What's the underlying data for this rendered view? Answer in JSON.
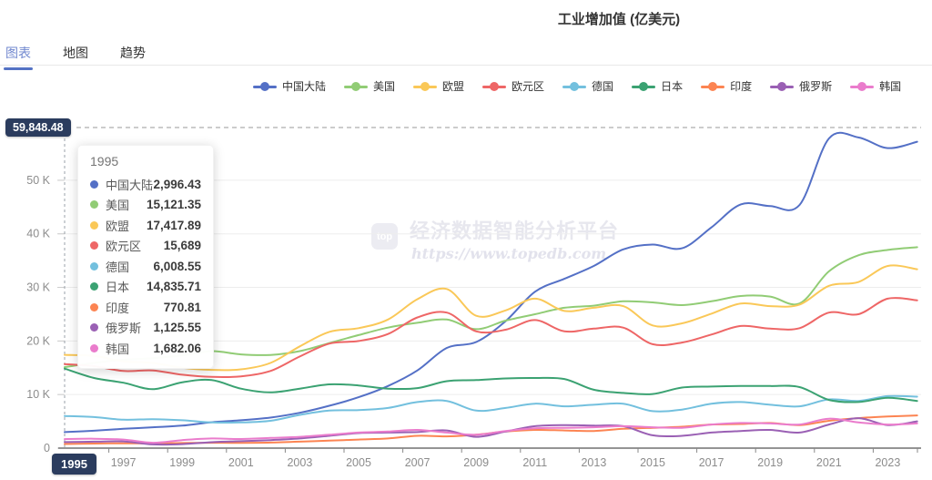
{
  "header": {
    "title": "工业增加值 (亿美元)"
  },
  "tabs": {
    "items": [
      {
        "label": "图表",
        "active": true
      },
      {
        "label": "地图",
        "active": false
      },
      {
        "label": "趋势",
        "active": false
      }
    ]
  },
  "axis": {
    "y_max_label": "59,848.48",
    "x_pointer_label": "1995",
    "y_ticks": [
      "0",
      "10 K",
      "20 K",
      "30 K",
      "40 K",
      "50 K"
    ],
    "x_labels": [
      "1995",
      "1997",
      "1999",
      "2001",
      "2003",
      "2005",
      "2007",
      "2009",
      "2011",
      "2013",
      "2015",
      "2017",
      "2019",
      "2021",
      "2023"
    ]
  },
  "tooltip": {
    "title": "1995",
    "rows": [
      {
        "label": "中国大陆",
        "value": "2,996.43"
      },
      {
        "label": "美国",
        "value": "15,121.35"
      },
      {
        "label": "欧盟",
        "value": "17,417.89"
      },
      {
        "label": "欧元区",
        "value": "15,689"
      },
      {
        "label": "德国",
        "value": "6,008.55"
      },
      {
        "label": "日本",
        "value": "14,835.71"
      },
      {
        "label": "印度",
        "value": "770.81"
      },
      {
        "label": "俄罗斯",
        "value": "1,125.55"
      },
      {
        "label": "韩国",
        "value": "1,682.06"
      }
    ]
  },
  "watermark": {
    "logo_text": "top",
    "text": "经济数据智能分析平台",
    "url": "https://www.topedb.com"
  },
  "colors": {
    "badge_navy": "#2b3c5e",
    "grid": "#ededed",
    "axis_line": "#555555",
    "axis_label": "#8c8c8c",
    "dashed_guides": "#999999"
  },
  "chart_data": {
    "type": "line",
    "title": "工业增加值 (亿美元)",
    "xlabel": "",
    "ylabel": "亿美元",
    "ylim": [
      0,
      59848.48
    ],
    "grid": true,
    "legend_position": "top",
    "smooth": true,
    "x": [
      1995,
      1996,
      1997,
      1998,
      1999,
      2000,
      2001,
      2002,
      2003,
      2004,
      2005,
      2006,
      2007,
      2008,
      2009,
      2010,
      2011,
      2012,
      2013,
      2014,
      2015,
      2016,
      2017,
      2018,
      2019,
      2020,
      2021,
      2022,
      2023,
      2024
    ],
    "series": [
      {
        "name": "中国大陆",
        "color": "#5470c6",
        "values": [
          2996.43,
          3250,
          3600,
          3900,
          4200,
          4835,
          5200,
          5700,
          6600,
          7900,
          9500,
          11600,
          14500,
          18700,
          19800,
          23700,
          29200,
          31600,
          34000,
          37100,
          38000,
          37300,
          41200,
          45500,
          45200,
          45400,
          57800,
          58000,
          56000,
          57200
        ]
      },
      {
        "name": "美国",
        "color": "#91cc75",
        "values": [
          15121.35,
          15900,
          16500,
          16800,
          17300,
          18100,
          17500,
          17400,
          18100,
          19600,
          21100,
          22500,
          23400,
          24000,
          22200,
          23800,
          25000,
          26200,
          26600,
          27400,
          27200,
          26700,
          27400,
          28400,
          28300,
          27000,
          33000,
          36000,
          37000,
          37500
        ]
      },
      {
        "name": "欧盟",
        "color": "#fac858",
        "values": [
          17417.89,
          17200,
          16200,
          15900,
          15000,
          14600,
          14700,
          15900,
          19000,
          21700,
          22400,
          24000,
          27800,
          29700,
          24700,
          25700,
          27900,
          25600,
          26200,
          26500,
          22900,
          23300,
          25100,
          27000,
          26500,
          26800,
          30300,
          31000,
          34000,
          33400
        ]
      },
      {
        "name": "欧元区",
        "color": "#ee6666",
        "values": [
          15689,
          15300,
          14400,
          14500,
          13700,
          13300,
          13400,
          14400,
          17100,
          19500,
          20000,
          21300,
          24400,
          25300,
          21800,
          22100,
          23900,
          21800,
          22300,
          22500,
          19400,
          19700,
          21200,
          22800,
          22300,
          22400,
          25300,
          25000,
          27900,
          27600
        ]
      },
      {
        "name": "德国",
        "color": "#73c0de",
        "values": [
          6008.55,
          5800,
          5300,
          5400,
          5200,
          4800,
          4800,
          5100,
          6200,
          7000,
          7100,
          7500,
          8600,
          8800,
          7000,
          7500,
          8300,
          7800,
          8100,
          8300,
          6900,
          7200,
          8300,
          8600,
          8100,
          7800,
          9100,
          8800,
          9700,
          9600
        ]
      },
      {
        "name": "日本",
        "color": "#3ba272",
        "values": [
          14835.71,
          13100,
          12200,
          11000,
          12300,
          12700,
          11100,
          10400,
          11100,
          11900,
          11700,
          11100,
          11200,
          12500,
          12700,
          13000,
          13100,
          12900,
          10900,
          10300,
          10100,
          11300,
          11500,
          11600,
          11600,
          11400,
          9000,
          8600,
          9400,
          8800
        ]
      },
      {
        "name": "印度",
        "color": "#fc8452",
        "values": [
          770.81,
          850,
          900,
          880,
          950,
          1000,
          980,
          1030,
          1200,
          1400,
          1600,
          1800,
          2300,
          2200,
          2500,
          3100,
          3400,
          3300,
          3200,
          3600,
          3800,
          4000,
          4400,
          4500,
          4700,
          4300,
          5100,
          5600,
          5900,
          6100
        ]
      },
      {
        "name": "俄罗斯",
        "color": "#9a60b4",
        "values": [
          1125.55,
          1200,
          1250,
          700,
          750,
          1100,
          1300,
          1500,
          1800,
          2300,
          2800,
          2900,
          3000,
          3300,
          2100,
          3100,
          4100,
          4300,
          4200,
          4100,
          2400,
          2300,
          2900,
          3200,
          3400,
          2900,
          4400,
          5600,
          4300,
          5000
        ]
      },
      {
        "name": "韩国",
        "color": "#ea7ccc",
        "values": [
          1682.06,
          1750,
          1600,
          1000,
          1500,
          1800,
          1700,
          1900,
          2100,
          2500,
          2900,
          3100,
          3400,
          2900,
          2500,
          3200,
          3700,
          3800,
          3900,
          4100,
          3900,
          3800,
          4400,
          4700,
          4600,
          4400,
          5500,
          4800,
          4400,
          4600
        ]
      }
    ]
  }
}
